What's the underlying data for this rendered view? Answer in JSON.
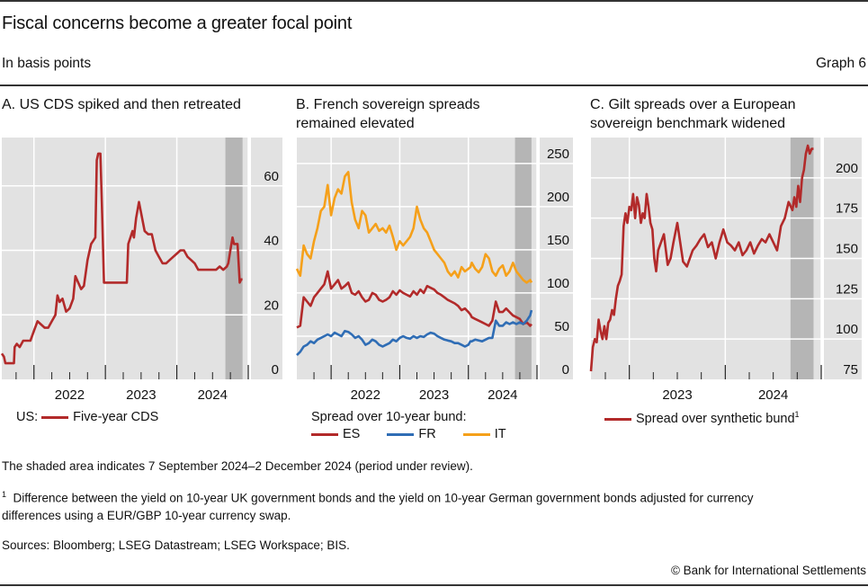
{
  "header": {
    "title": "Fiscal concerns become a greater focal point",
    "subtitle": "In basis points",
    "graph_number": "Graph 6"
  },
  "colors": {
    "red": "#B22A2A",
    "blue": "#2F6DB5",
    "orange": "#F5A01A",
    "plot_bg": "#E2E2E2",
    "shade": "#B5B5B5",
    "grid": "#FFFFFF"
  },
  "panels": [
    {
      "title": "A. US CDS spiked and then retreated",
      "legend_prefix": "US:",
      "legend": [
        {
          "label": "Five-year CDS",
          "color": "#B22A2A"
        }
      ]
    },
    {
      "title": "B. French sovereign spreads remained elevated",
      "legend_prefix": "Spread over 10-year bund:",
      "legend": [
        {
          "label": "ES",
          "color": "#B22A2A"
        },
        {
          "label": "FR",
          "color": "#2F6DB5"
        },
        {
          "label": "IT",
          "color": "#F5A01A"
        }
      ]
    },
    {
      "title": "C. Gilt spreads over a European sovereign benchmark widened",
      "legend_prefix": "",
      "legend": [
        {
          "label": "Spread over synthetic bund",
          "sup": "1",
          "color": "#B22A2A"
        }
      ]
    }
  ],
  "notes": {
    "shaded": "The shaded area indicates 7 September 2024–2 December 2024 (period under review).",
    "footnote_mark": "1",
    "footnote_line1": "Difference between the yield on 10-year UK government bonds and the yield on 10-year German government bonds adjusted for currency",
    "footnote_line2": "differences using a EUR/GBP 10-year currency swap.",
    "sources": "Sources: Bloomberg; LSEG Datastream; LSEG Workspace; BIS.",
    "copyright": "© Bank for International Settlements"
  },
  "chart_data": [
    {
      "type": "line",
      "title": "A. US CDS spiked and then retreated",
      "xlabel": "",
      "ylabel": "basis points",
      "x_tick_labels": [
        "2022",
        "2023",
        "2024"
      ],
      "y_ticks": [
        0,
        20,
        40,
        60
      ],
      "ylim": [
        0,
        75
      ],
      "xlim": [
        2021.55,
        2025.0
      ],
      "shaded_period": [
        2024.68,
        2024.92
      ],
      "grid": true,
      "legend_position": "bottom",
      "series": [
        {
          "name": "Five-year CDS",
          "color": "#B22A2A",
          "x": [
            2021.55,
            2021.58,
            2021.6,
            2021.62,
            2021.64,
            2021.72,
            2021.73,
            2021.76,
            2021.8,
            2021.85,
            2021.9,
            2021.95,
            2022.0,
            2022.05,
            2022.1,
            2022.15,
            2022.2,
            2022.25,
            2022.3,
            2022.33,
            2022.36,
            2022.4,
            2022.45,
            2022.5,
            2022.55,
            2022.58,
            2022.62,
            2022.66,
            2022.7,
            2022.75,
            2022.8,
            2022.83,
            2022.86,
            2022.88,
            2022.9,
            2022.93,
            2022.95,
            2022.98,
            2023.05,
            2023.1,
            2023.15,
            2023.2,
            2023.25,
            2023.3,
            2023.32,
            2023.35,
            2023.38,
            2023.4,
            2023.43,
            2023.47,
            2023.55,
            2023.6,
            2023.65,
            2023.7,
            2023.75,
            2023.8,
            2023.85,
            2023.9,
            2023.95,
            2024.0,
            2024.05,
            2024.1,
            2024.15,
            2024.2,
            2024.25,
            2024.3,
            2024.35,
            2024.4,
            2024.45,
            2024.5,
            2024.55,
            2024.6,
            2024.65,
            2024.7,
            2024.72,
            2024.75,
            2024.78,
            2024.8,
            2024.83,
            2024.85,
            2024.88,
            2024.9,
            2024.92
          ],
          "y": [
            8,
            7,
            5,
            5,
            5,
            5,
            10,
            11,
            10,
            12,
            12,
            12,
            15,
            18,
            17,
            16,
            16,
            18,
            20,
            26,
            24,
            25,
            21,
            22,
            25,
            32,
            30,
            28,
            29,
            37,
            42,
            43,
            44,
            68,
            70,
            70,
            55,
            30,
            30,
            30,
            30,
            30,
            30,
            30,
            42,
            44,
            46,
            44,
            50,
            55,
            46,
            45,
            45,
            40,
            38,
            36,
            36,
            37,
            38,
            39,
            40,
            40,
            38,
            37,
            36,
            34,
            34,
            34,
            34,
            34,
            34,
            35,
            34,
            35,
            36,
            40,
            44,
            42,
            42,
            42,
            30,
            31,
            31
          ]
        }
      ]
    },
    {
      "type": "line",
      "title": "B. French sovereign spreads remained elevated",
      "xlabel": "",
      "ylabel": "basis points",
      "x_tick_labels": [
        "2022",
        "2023",
        "2024"
      ],
      "y_ticks": [
        0,
        50,
        100,
        150,
        200,
        250
      ],
      "ylim": [
        0,
        280
      ],
      "xlim": [
        2021.5,
        2025.0
      ],
      "shaded_period": [
        2024.68,
        2024.92
      ],
      "grid": true,
      "legend_position": "bottom",
      "series": [
        {
          "name": "ES",
          "color": "#B22A2A",
          "x": [
            2021.5,
            2021.55,
            2021.6,
            2021.65,
            2021.7,
            2021.75,
            2021.8,
            2021.85,
            2021.9,
            2021.95,
            2022.0,
            2022.05,
            2022.1,
            2022.15,
            2022.2,
            2022.25,
            2022.3,
            2022.35,
            2022.4,
            2022.45,
            2022.5,
            2022.55,
            2022.6,
            2022.65,
            2022.7,
            2022.75,
            2022.8,
            2022.85,
            2022.9,
            2022.95,
            2023.0,
            2023.05,
            2023.1,
            2023.15,
            2023.2,
            2023.25,
            2023.3,
            2023.35,
            2023.4,
            2023.45,
            2023.5,
            2023.55,
            2023.6,
            2023.65,
            2023.7,
            2023.75,
            2023.8,
            2023.85,
            2023.9,
            2023.95,
            2024.0,
            2024.03,
            2024.05,
            2024.1,
            2024.15,
            2024.2,
            2024.25,
            2024.3,
            2024.35,
            2024.4,
            2024.45,
            2024.5,
            2024.55,
            2024.6,
            2024.65,
            2024.7,
            2024.75,
            2024.8,
            2024.85,
            2024.9,
            2024.92
          ],
          "y": [
            60,
            62,
            95,
            90,
            85,
            95,
            100,
            105,
            110,
            125,
            105,
            110,
            115,
            105,
            108,
            112,
            100,
            98,
            102,
            95,
            90,
            92,
            100,
            98,
            92,
            90,
            92,
            95,
            102,
            98,
            103,
            100,
            98,
            96,
            102,
            98,
            104,
            100,
            108,
            106,
            104,
            100,
            98,
            95,
            92,
            90,
            88,
            85,
            80,
            82,
            78,
            75,
            72,
            70,
            68,
            66,
            64,
            62,
            68,
            90,
            78,
            78,
            82,
            78,
            74,
            72,
            70,
            64,
            66,
            62,
            64
          ]
        },
        {
          "name": "FR",
          "color": "#2F6DB5",
          "x": [
            2021.5,
            2021.55,
            2021.6,
            2021.65,
            2021.7,
            2021.75,
            2021.8,
            2021.85,
            2021.9,
            2021.95,
            2022.0,
            2022.05,
            2022.1,
            2022.15,
            2022.2,
            2022.25,
            2022.3,
            2022.35,
            2022.4,
            2022.45,
            2022.5,
            2022.55,
            2022.6,
            2022.65,
            2022.7,
            2022.75,
            2022.8,
            2022.85,
            2022.9,
            2022.95,
            2023.0,
            2023.05,
            2023.1,
            2023.15,
            2023.2,
            2023.25,
            2023.3,
            2023.35,
            2023.4,
            2023.45,
            2023.5,
            2023.55,
            2023.6,
            2023.65,
            2023.7,
            2023.75,
            2023.8,
            2023.85,
            2023.9,
            2023.95,
            2024.0,
            2024.03,
            2024.05,
            2024.1,
            2024.15,
            2024.2,
            2024.25,
            2024.3,
            2024.35,
            2024.4,
            2024.45,
            2024.5,
            2024.55,
            2024.6,
            2024.65,
            2024.7,
            2024.75,
            2024.8,
            2024.85,
            2024.9,
            2024.92
          ],
          "y": [
            28,
            32,
            38,
            40,
            44,
            42,
            46,
            48,
            50,
            52,
            50,
            54,
            52,
            50,
            56,
            55,
            52,
            48,
            50,
            46,
            40,
            42,
            46,
            44,
            40,
            38,
            40,
            42,
            46,
            44,
            48,
            50,
            48,
            47,
            50,
            48,
            50,
            49,
            52,
            54,
            53,
            50,
            48,
            46,
            45,
            44,
            42,
            42,
            40,
            38,
            40,
            44,
            44,
            46,
            45,
            44,
            46,
            48,
            48,
            68,
            62,
            62,
            66,
            64,
            66,
            64,
            66,
            64,
            68,
            74,
            80
          ]
        },
        {
          "name": "IT",
          "color": "#F5A01A",
          "x": [
            2021.5,
            2021.55,
            2021.6,
            2021.65,
            2021.7,
            2021.75,
            2021.8,
            2021.85,
            2021.9,
            2021.95,
            2022.0,
            2022.05,
            2022.1,
            2022.15,
            2022.2,
            2022.25,
            2022.3,
            2022.35,
            2022.4,
            2022.45,
            2022.5,
            2022.55,
            2022.6,
            2022.65,
            2022.7,
            2022.75,
            2022.8,
            2022.85,
            2022.9,
            2022.95,
            2023.0,
            2023.05,
            2023.1,
            2023.15,
            2023.2,
            2023.25,
            2023.3,
            2023.35,
            2023.4,
            2023.45,
            2023.5,
            2023.55,
            2023.6,
            2023.65,
            2023.7,
            2023.75,
            2023.8,
            2023.85,
            2023.9,
            2023.95,
            2024.0,
            2024.03,
            2024.05,
            2024.1,
            2024.15,
            2024.2,
            2024.25,
            2024.3,
            2024.35,
            2024.4,
            2024.45,
            2024.5,
            2024.55,
            2024.6,
            2024.65,
            2024.7,
            2024.75,
            2024.8,
            2024.85,
            2024.9,
            2024.92
          ],
          "y": [
            128,
            120,
            155,
            145,
            140,
            160,
            175,
            195,
            200,
            225,
            190,
            210,
            220,
            215,
            235,
            240,
            205,
            185,
            175,
            195,
            190,
            170,
            175,
            180,
            172,
            175,
            170,
            178,
            165,
            150,
            160,
            155,
            160,
            165,
            175,
            200,
            185,
            175,
            170,
            160,
            150,
            145,
            140,
            135,
            125,
            120,
            125,
            118,
            130,
            125,
            128,
            130,
            135,
            128,
            124,
            130,
            145,
            140,
            125,
            120,
            128,
            132,
            120,
            125,
            135,
            125,
            120,
            115,
            112,
            115,
            112
          ]
        }
      ]
    },
    {
      "type": "line",
      "title": "C. Gilt spreads over a European sovereign benchmark widened",
      "xlabel": "",
      "ylabel": "basis points",
      "x_tick_labels": [
        "2023",
        "2024"
      ],
      "y_ticks": [
        75,
        100,
        125,
        150,
        175,
        200
      ],
      "ylim": [
        75,
        225
      ],
      "xlim": [
        2022.6,
        2025.0
      ],
      "shaded_period": [
        2024.68,
        2024.92
      ],
      "grid": true,
      "legend_position": "bottom",
      "series": [
        {
          "name": "Spread over synthetic bund",
          "color": "#B22A2A",
          "x": [
            2022.6,
            2022.62,
            2022.64,
            2022.66,
            2022.68,
            2022.7,
            2022.72,
            2022.74,
            2022.76,
            2022.78,
            2022.8,
            2022.82,
            2022.84,
            2022.86,
            2022.88,
            2022.9,
            2022.92,
            2022.94,
            2022.96,
            2022.98,
            2023.0,
            2023.02,
            2023.04,
            2023.06,
            2023.08,
            2023.1,
            2023.12,
            2023.14,
            2023.16,
            2023.18,
            2023.2,
            2023.22,
            2023.24,
            2023.26,
            2023.28,
            2023.3,
            2023.33,
            2023.36,
            2023.4,
            2023.43,
            2023.46,
            2023.5,
            2023.53,
            2023.56,
            2023.6,
            2023.63,
            2023.66,
            2023.7,
            2023.74,
            2023.78,
            2023.82,
            2023.86,
            2023.9,
            2023.94,
            2023.98,
            2024.02,
            2024.06,
            2024.1,
            2024.14,
            2024.18,
            2024.22,
            2024.26,
            2024.3,
            2024.34,
            2024.38,
            2024.42,
            2024.46,
            2024.5,
            2024.54,
            2024.58,
            2024.62,
            2024.66,
            2024.7,
            2024.72,
            2024.74,
            2024.76,
            2024.78,
            2024.8,
            2024.82,
            2024.84,
            2024.86,
            2024.88,
            2024.9,
            2024.92
          ],
          "y": [
            80,
            95,
            100,
            98,
            112,
            105,
            100,
            108,
            100,
            110,
            112,
            118,
            115,
            125,
            133,
            136,
            140,
            170,
            178,
            172,
            182,
            180,
            190,
            175,
            188,
            183,
            172,
            178,
            175,
            190,
            182,
            172,
            168,
            150,
            142,
            155,
            160,
            165,
            146,
            150,
            160,
            172,
            160,
            148,
            145,
            150,
            155,
            158,
            162,
            165,
            157,
            160,
            150,
            160,
            168,
            160,
            158,
            155,
            160,
            152,
            155,
            160,
            153,
            158,
            162,
            160,
            165,
            160,
            155,
            170,
            175,
            185,
            180,
            188,
            182,
            195,
            185,
            200,
            205,
            215,
            220,
            215,
            218,
            218
          ]
        }
      ]
    }
  ]
}
